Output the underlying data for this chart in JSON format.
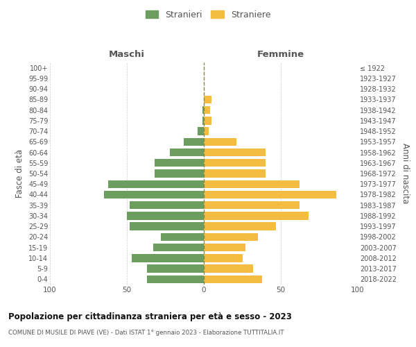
{
  "age_groups": [
    "0-4",
    "5-9",
    "10-14",
    "15-19",
    "20-24",
    "25-29",
    "30-34",
    "35-39",
    "40-44",
    "45-49",
    "50-54",
    "55-59",
    "60-64",
    "65-69",
    "70-74",
    "75-79",
    "80-84",
    "85-89",
    "90-94",
    "95-99",
    "100+"
  ],
  "birth_years": [
    "2018-2022",
    "2013-2017",
    "2008-2012",
    "2003-2007",
    "1998-2002",
    "1993-1997",
    "1988-1992",
    "1983-1987",
    "1978-1982",
    "1973-1977",
    "1968-1972",
    "1963-1967",
    "1958-1962",
    "1953-1957",
    "1948-1952",
    "1943-1947",
    "1938-1942",
    "1933-1937",
    "1928-1932",
    "1923-1927",
    "≤ 1922"
  ],
  "maschi": [
    37,
    37,
    47,
    33,
    28,
    48,
    50,
    48,
    65,
    62,
    32,
    32,
    22,
    13,
    4,
    1,
    1,
    0,
    0,
    0,
    0
  ],
  "femmine": [
    38,
    32,
    25,
    27,
    35,
    47,
    68,
    62,
    86,
    62,
    40,
    40,
    40,
    21,
    3,
    5,
    4,
    5,
    0,
    0,
    0
  ],
  "male_color": "#6b9e5e",
  "female_color": "#f5bc42",
  "grid_color": "#cccccc",
  "center_line_color": "#888844",
  "xlim": 100,
  "title_main": "Popolazione per cittadinanza straniera per età e sesso - 2023",
  "title_sub": "COMUNE DI MUSILE DI PIAVE (VE) - Dati ISTAT 1° gennaio 2023 - Elaborazione TUTTITALIA.IT",
  "ylabel_left": "Fasce di età",
  "ylabel_right": "Anni di nascita",
  "header_left": "Maschi",
  "header_right": "Femmine",
  "legend_stranieri": "Stranieri",
  "legend_straniere": "Straniere",
  "bg_color": "#ffffff"
}
